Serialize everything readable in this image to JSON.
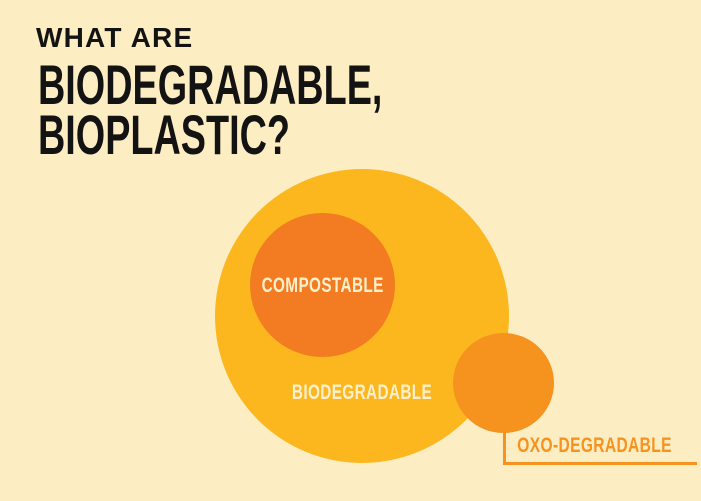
{
  "title": {
    "kicker": "WHAT ARE",
    "line1": "BIODEGRADABLE,",
    "line2": "BIOPLASTIC?"
  },
  "venn": {
    "type": "euler-diagram",
    "sets": [
      {
        "id": "biodegradable",
        "label": "BIODEGRADABLE",
        "color": "#FBB71D",
        "contains": [
          "compostable"
        ]
      },
      {
        "id": "compostable",
        "label": "COMPOSTABLE",
        "color": "#F37B21",
        "contained_in": "biodegradable"
      },
      {
        "id": "oxo-degradable",
        "label": "OXO-DEGRADABLE",
        "color": "#F6921E",
        "overlaps": "biodegradable"
      }
    ]
  },
  "colors": {
    "bg": "#FCEDC3",
    "yellow": "#FBB71D",
    "orange-dark": "#F37B21",
    "orange-mid": "#F6921E",
    "ink": "#131313",
    "cream-text": "#FCF0CC"
  }
}
